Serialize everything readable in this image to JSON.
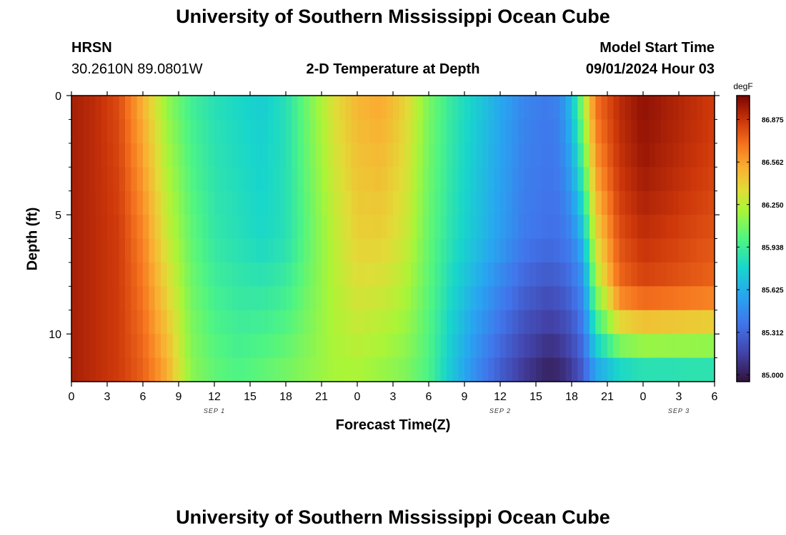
{
  "page": {
    "title": "University of Southern Mississippi Ocean Cube",
    "footer_title": "University of Southern Mississippi Ocean Cube",
    "station": "HRSN",
    "coords": "30.2610N  89.0801W",
    "subtitle": "2-D Temperature at Depth",
    "model_label": "Model Start Time",
    "model_time": "09/01/2024 Hour 03"
  },
  "chart_data": {
    "type": "heatmap",
    "title": "2-D Temperature at Depth",
    "xlabel": "Forecast Time(Z)",
    "ylabel": "Depth (ft)",
    "x_hours_from_start": [
      0,
      54
    ],
    "x_tick_hours": [
      0,
      3,
      6,
      9,
      12,
      15,
      18,
      21,
      24,
      27,
      30,
      33,
      36,
      39,
      42,
      45,
      48,
      51,
      54
    ],
    "x_tick_labels": [
      "0",
      "3",
      "6",
      "9",
      "12",
      "15",
      "18",
      "21",
      "0",
      "3",
      "6",
      "9",
      "12",
      "15",
      "18",
      "21",
      "0",
      "3",
      "6"
    ],
    "date_labels": [
      {
        "text": "SEP 1",
        "hour": 12
      },
      {
        "text": "SEP 2",
        "hour": 36
      },
      {
        "text": "SEP 3",
        "hour": 51
      }
    ],
    "ylim": [
      0,
      12
    ],
    "y_ticks": [
      0,
      5,
      10
    ],
    "y_minor_ticks": [
      1,
      2,
      3,
      4,
      6,
      7,
      8,
      9,
      11
    ],
    "depth_levels": 12,
    "colorbar": {
      "unit": "degF",
      "min": 84.95,
      "max": 87.05,
      "ticks": [
        "86.875",
        "86.562",
        "86.250",
        "85.938",
        "85.625",
        "85.312",
        "85.000"
      ]
    },
    "temperature_profiles": {
      "hours": [
        0,
        2,
        4,
        6,
        8,
        10,
        12,
        14,
        16,
        18,
        20,
        22,
        24,
        26,
        28,
        30,
        32,
        34,
        36,
        38,
        40,
        41,
        42,
        43,
        44,
        46,
        48,
        50,
        52,
        54
      ],
      "surface": [
        86.95,
        86.9,
        86.8,
        86.5,
        86.15,
        85.95,
        85.85,
        85.8,
        85.75,
        85.85,
        86.1,
        86.35,
        86.5,
        86.55,
        86.4,
        86.1,
        85.9,
        85.75,
        85.6,
        85.45,
        85.4,
        85.45,
        85.7,
        86.2,
        86.7,
        86.9,
        87.0,
        86.95,
        86.9,
        86.85
      ],
      "mid": [
        86.95,
        86.9,
        86.85,
        86.65,
        86.3,
        86.05,
        85.9,
        85.85,
        85.8,
        85.85,
        86.05,
        86.25,
        86.4,
        86.4,
        86.3,
        86.05,
        85.85,
        85.7,
        85.55,
        85.4,
        85.35,
        85.35,
        85.4,
        85.55,
        86.2,
        86.7,
        86.8,
        86.78,
        86.75,
        86.72
      ],
      "bottom": [
        86.95,
        86.9,
        86.85,
        86.75,
        86.55,
        86.15,
        86.05,
        86.0,
        86.05,
        86.1,
        86.15,
        86.2,
        86.2,
        86.15,
        86.1,
        85.98,
        85.7,
        85.45,
        85.25,
        85.1,
        85.0,
        85.02,
        85.1,
        85.25,
        85.5,
        85.65,
        85.7,
        85.7,
        85.72,
        85.72
      ]
    }
  }
}
